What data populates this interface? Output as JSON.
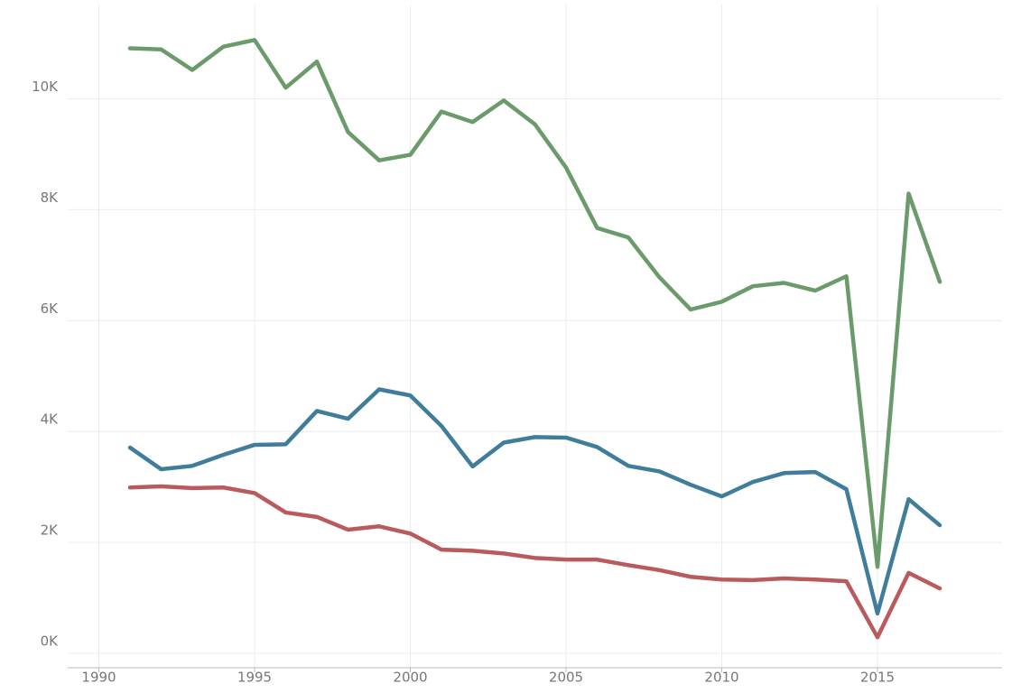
{
  "chart_data": {
    "type": "line",
    "x": [
      1991,
      1992,
      1993,
      1994,
      1995,
      1996,
      1997,
      1998,
      1999,
      2000,
      2001,
      2002,
      2003,
      2004,
      2005,
      2006,
      2007,
      2008,
      2009,
      2010,
      2011,
      2012,
      2013,
      2014,
      2015,
      2016,
      2017
    ],
    "series": [
      {
        "color": "#6b9b6b",
        "values": [
          10910,
          10890,
          10520,
          10940,
          11060,
          10200,
          10670,
          9400,
          8890,
          8990,
          9770,
          9580,
          9970,
          9540,
          8760,
          7670,
          7500,
          6780,
          6200,
          6340,
          6620,
          6680,
          6540,
          6800,
          1560,
          8290,
          6700
        ]
      },
      {
        "color": "#3f7d9b",
        "values": [
          3710,
          3320,
          3380,
          3580,
          3760,
          3770,
          4370,
          4230,
          4760,
          4650,
          4100,
          3370,
          3800,
          3900,
          3890,
          3720,
          3380,
          3280,
          3040,
          2830,
          3090,
          3250,
          3270,
          2960,
          720,
          2780,
          2310
        ]
      },
      {
        "color": "#b95b5c",
        "values": [
          2990,
          3010,
          2980,
          2990,
          2890,
          2540,
          2460,
          2230,
          2290,
          2160,
          1870,
          1850,
          1800,
          1720,
          1690,
          1690,
          1590,
          1500,
          1380,
          1330,
          1320,
          1350,
          1330,
          1300,
          290,
          1450,
          1170
        ]
      }
    ],
    "xlim": [
      1989,
      2019
    ],
    "xticks": [
      1990,
      1995,
      2000,
      2005,
      2010,
      2015
    ],
    "ylim": [
      -260,
      11700
    ],
    "yticks": [
      {
        "value": 0,
        "label": "0K"
      },
      {
        "value": 2000,
        "label": "2K"
      },
      {
        "value": 4000,
        "label": "4K"
      },
      {
        "value": 6000,
        "label": "6K"
      },
      {
        "value": 8000,
        "label": "8K"
      },
      {
        "value": 10000,
        "label": "10K"
      }
    ],
    "grid": true
  }
}
